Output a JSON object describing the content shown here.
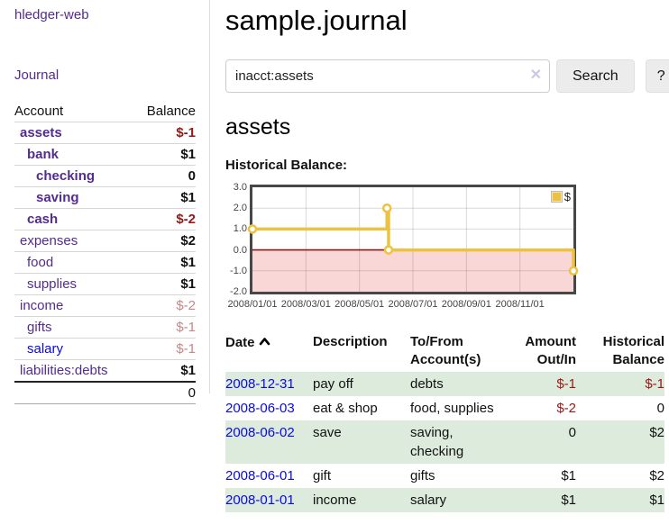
{
  "colors": {
    "link_visited": "#542c8f",
    "link_unvisited": "#0a0ae0",
    "negative": "#991717",
    "negative_faint": "#c38888",
    "row_stripe_green": "#dcebdc",
    "series_gold": "#edc240",
    "negative_region_pink": "#f9d7d7",
    "zero_line_red": "#8b1a1a"
  },
  "sidebar": {
    "brand": "hledger-web",
    "journal_link": "Journal",
    "table": {
      "account_header": "Account",
      "balance_header": "Balance",
      "accounts": [
        {
          "name": "assets",
          "balance": "$-1"
        },
        {
          "name": "bank",
          "balance": "$1"
        },
        {
          "name": "checking",
          "balance": "0"
        },
        {
          "name": "saving",
          "balance": "$1"
        },
        {
          "name": "cash",
          "balance": "$-2"
        },
        {
          "name": "expenses",
          "balance": "$2"
        },
        {
          "name": "food",
          "balance": "$1"
        },
        {
          "name": "supplies",
          "balance": "$1"
        },
        {
          "name": "income",
          "balance": "$-2"
        },
        {
          "name": "gifts",
          "balance": "$-1"
        },
        {
          "name": "salary",
          "balance": "$-1"
        },
        {
          "name": "liabilities:debts",
          "balance": "$1"
        }
      ],
      "total": "0"
    }
  },
  "header": {
    "title": "sample.journal"
  },
  "search": {
    "value": "inacct:assets",
    "clear_icon": "✕",
    "button_label": "Search",
    "help_label": "?"
  },
  "register": {
    "heading": "assets",
    "chart_title": "Historical Balance:",
    "table": {
      "headers": {
        "date": "Date",
        "description": "Description",
        "tofrom": "To/From Account(s)",
        "amount": "Amount Out/In",
        "balance": "Historical Balance"
      },
      "rows": [
        {
          "date": "2008-12-31",
          "description": "pay off",
          "accounts": "debts",
          "amount": "$-1",
          "balance": "$-1"
        },
        {
          "date": "2008-06-03",
          "description": "eat & shop",
          "accounts": "food, supplies",
          "amount": "$-2",
          "balance": "0"
        },
        {
          "date": "2008-06-02",
          "description": "save",
          "accounts": [
            "saving,",
            "checking"
          ],
          "amount": "0",
          "balance": "$2"
        },
        {
          "date": "2008-06-01",
          "description": "gift",
          "accounts": "gifts",
          "amount": "$1",
          "balance": "$2"
        },
        {
          "date": "2008-01-01",
          "description": "income",
          "accounts": "salary",
          "amount": "$1",
          "balance": "$1"
        }
      ]
    }
  },
  "chart_data": {
    "type": "line",
    "step": true,
    "title": "Historical Balance:",
    "legend": "$",
    "series": [
      {
        "name": "$",
        "color": "#edc240",
        "points": [
          {
            "date": "2008-01-01",
            "x": 0,
            "y": 1
          },
          {
            "date": "2008-06-02",
            "x": 5.03,
            "y": 2
          },
          {
            "date": "2008-06-03",
            "x": 5.09,
            "y": 0
          },
          {
            "date": "2008-12-31",
            "x": 12,
            "y": -1
          }
        ]
      }
    ],
    "xlim": [
      0,
      12
    ],
    "ylim": [
      -2,
      3
    ],
    "x_ticks": [
      {
        "t": 0,
        "label": "2008/01/01"
      },
      {
        "t": 2,
        "label": "2008/03/01"
      },
      {
        "t": 4,
        "label": "2008/05/01"
      },
      {
        "t": 6,
        "label": "2008/07/01"
      },
      {
        "t": 8,
        "label": "2008/09/01"
      },
      {
        "t": 10,
        "label": "2008/11/01"
      }
    ],
    "y_ticks": [
      3.0,
      2.0,
      1.0,
      0.0,
      -1.0,
      -2.0
    ],
    "grid": true,
    "legend_position": "top-right",
    "negative_region_color": "#f9d7d7",
    "zero_line_color": "#8b1a1a"
  }
}
